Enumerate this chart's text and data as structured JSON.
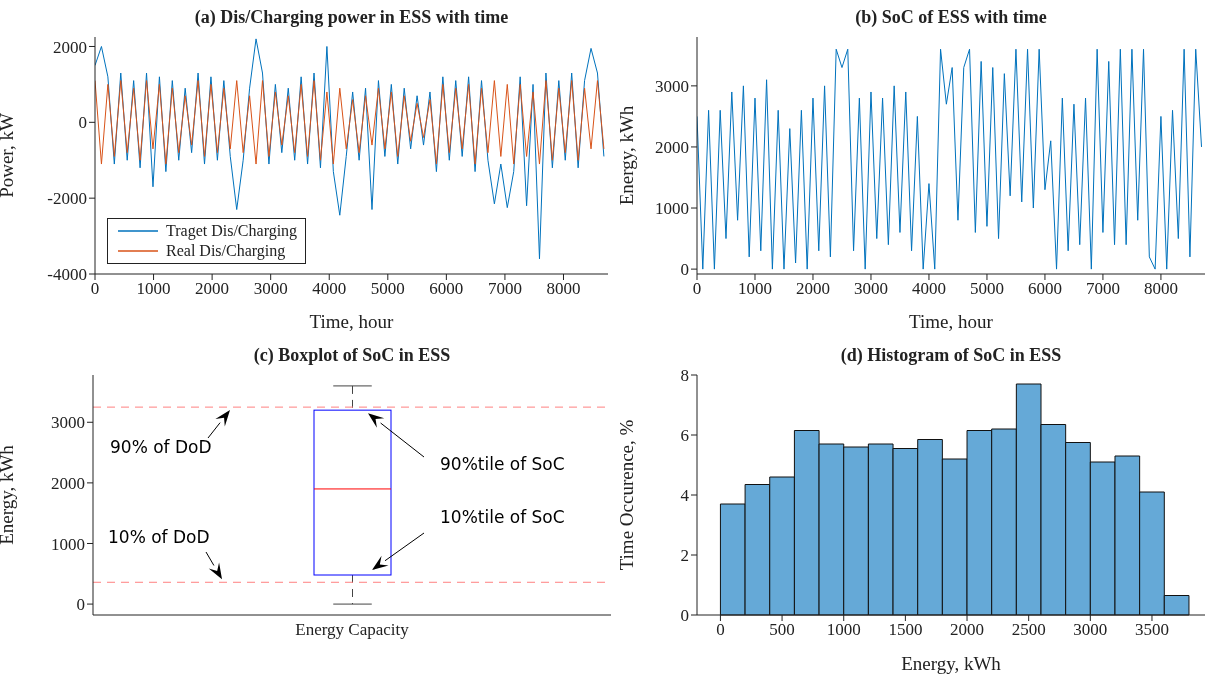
{
  "chart_data": [
    {
      "type": "line",
      "title": "(a) Dis/Charging power in ESS with time",
      "xlabel": "Time, hour",
      "ylabel": "Power, kW",
      "xlim": [
        0,
        8760
      ],
      "xticks": [
        0,
        1000,
        2000,
        3000,
        4000,
        5000,
        6000,
        7000,
        8000
      ],
      "ylim": [
        -4000,
        2250
      ],
      "yticks": [
        -4000,
        -2000,
        0,
        2000
      ],
      "legend": "bottom left",
      "marker": "none",
      "line_style": "solid",
      "x": [
        0,
        110,
        220,
        330,
        440,
        550,
        660,
        770,
        880,
        990,
        1100,
        1210,
        1320,
        1430,
        1540,
        1650,
        1760,
        1870,
        1980,
        2090,
        2200,
        2310,
        2420,
        2530,
        2640,
        2750,
        2860,
        2970,
        3080,
        3190,
        3300,
        3410,
        3520,
        3630,
        3740,
        3850,
        3960,
        4070,
        4180,
        4290,
        4400,
        4510,
        4620,
        4730,
        4840,
        4950,
        5060,
        5170,
        5280,
        5390,
        5500,
        5610,
        5720,
        5830,
        5940,
        6050,
        6160,
        6270,
        6380,
        6490,
        6600,
        6710,
        6820,
        6930,
        7040,
        7150,
        7260,
        7370,
        7480,
        7590,
        7700,
        7810,
        7920,
        8030,
        8140,
        8250,
        8360,
        8470,
        8580,
        8690
      ],
      "series": [
        {
          "name": "Traget Dis/Charging",
          "color": "#0072bd",
          "values": [
            1500,
            2000,
            1200,
            -1100,
            1300,
            -1000,
            1100,
            -1200,
            1300,
            -1700,
            1200,
            -1300,
            1100,
            -1000,
            900,
            -800,
            1300,
            -1100,
            1200,
            -1000,
            1100,
            -900,
            -2300,
            -1000,
            900,
            2200,
            1300,
            -1100,
            1000,
            -800,
            900,
            -1000,
            1200,
            -1100,
            1300,
            -1200,
            2000,
            -1300,
            -2450,
            -900,
            800,
            -1000,
            900,
            -2300,
            1100,
            -900,
            1000,
            -1100,
            900,
            -700,
            700,
            -600,
            800,
            -1300,
            1200,
            -1000,
            1100,
            -900,
            1200,
            -1300,
            1100,
            -1000,
            -2150,
            -1100,
            -2250,
            -1300,
            1200,
            -2200,
            1000,
            -3600,
            1300,
            -1200,
            1100,
            -1000,
            1300,
            -1200,
            1100,
            1950,
            1300,
            -900
          ]
        },
        {
          "name": "Real Dis/Charging",
          "color": "#d95319",
          "values": [
            1100,
            -1100,
            1000,
            -900,
            1100,
            -800,
            900,
            -1000,
            1100,
            -700,
            1000,
            -1100,
            900,
            -800,
            700,
            -600,
            1100,
            -900,
            1000,
            -800,
            900,
            -700,
            1100,
            -800,
            700,
            -1100,
            1100,
            -900,
            800,
            -600,
            700,
            -800,
            1000,
            -900,
            1100,
            -1000,
            800,
            -1100,
            900,
            -700,
            600,
            -800,
            700,
            -600,
            900,
            -700,
            800,
            -900,
            700,
            -500,
            500,
            -400,
            600,
            -1100,
            1000,
            -800,
            900,
            -700,
            1000,
            -1100,
            900,
            -800,
            1100,
            -900,
            1000,
            -1100,
            1000,
            -900,
            800,
            -1100,
            1100,
            -1000,
            900,
            -800,
            1100,
            -1000,
            900,
            -700,
            1100,
            -700
          ]
        }
      ]
    },
    {
      "type": "line",
      "title": "(b) SoC of ESS with time",
      "xlabel": "Time, hour",
      "ylabel": "Energy, kWh",
      "xlim": [
        0,
        8760
      ],
      "xticks": [
        0,
        1000,
        2000,
        3000,
        4000,
        5000,
        6000,
        7000,
        8000
      ],
      "ylim": [
        -80,
        3800
      ],
      "yticks": [
        0,
        1000,
        2000,
        3000
      ],
      "marker": "none",
      "line_style": "solid",
      "x": [
        0,
        100,
        200,
        300,
        400,
        500,
        600,
        700,
        800,
        900,
        1000,
        1100,
        1200,
        1300,
        1400,
        1500,
        1600,
        1700,
        1800,
        1900,
        2000,
        2100,
        2200,
        2300,
        2400,
        2500,
        2600,
        2700,
        2800,
        2900,
        3000,
        3100,
        3200,
        3300,
        3400,
        3500,
        3600,
        3700,
        3800,
        3900,
        4000,
        4100,
        4200,
        4300,
        4400,
        4500,
        4600,
        4700,
        4800,
        4900,
        5000,
        5100,
        5200,
        5300,
        5400,
        5500,
        5600,
        5700,
        5800,
        5900,
        6000,
        6100,
        6200,
        6300,
        6400,
        6500,
        6600,
        6700,
        6800,
        6900,
        7000,
        7100,
        7200,
        7300,
        7400,
        7500,
        7600,
        7700,
        7800,
        7900,
        8000,
        8100,
        8200,
        8300,
        8400,
        8500,
        8600,
        8700
      ],
      "series": [
        {
          "color": "#0072bd",
          "values": [
            2500,
            0,
            2600,
            0,
            2600,
            500,
            2900,
            800,
            3000,
            200,
            2800,
            300,
            3100,
            0,
            2600,
            0,
            2300,
            100,
            2600,
            0,
            2800,
            300,
            3000,
            200,
            3600,
            3300,
            3600,
            300,
            2800,
            0,
            2900,
            500,
            2800,
            400,
            3000,
            600,
            2900,
            300,
            2500,
            0,
            1400,
            0,
            3600,
            2700,
            3300,
            800,
            3300,
            3600,
            600,
            3400,
            700,
            3300,
            500,
            3200,
            1200,
            3600,
            1100,
            3600,
            1000,
            3600,
            1300,
            2100,
            0,
            2800,
            300,
            2700,
            400,
            2800,
            0,
            3600,
            600,
            3400,
            400,
            3600,
            400,
            3600,
            800,
            3600,
            200,
            0,
            2500,
            0,
            2600,
            500,
            3600,
            200,
            3600,
            2000
          ]
        }
      ]
    },
    {
      "type": "box",
      "title": "(c) Boxplot of SoC in ESS",
      "ylabel": "Energy, kWh",
      "categories": [
        "Energy Capacity"
      ],
      "ylim": [
        -180,
        3780
      ],
      "yticks": [
        0,
        1000,
        2000,
        3000
      ],
      "color": "#0000ff",
      "boxes": [
        {
          "low": 0,
          "q1": 480,
          "median": 1900,
          "q3": 3200,
          "high": 3600
        }
      ],
      "ref_lines": [
        {
          "axis": "y",
          "value": 3250,
          "color": "#ff8080",
          "line_style": "dashed"
        },
        {
          "axis": "y",
          "value": 360,
          "color": "#ff8080",
          "line_style": "dashed"
        }
      ],
      "annotations": [
        {
          "text": "90% of DoD",
          "y": 3250
        },
        {
          "text": "10% of DoD",
          "y": 360
        },
        {
          "text": "90%tile of SoC",
          "y": 3200
        },
        "10%tile of SoC"
      ]
    },
    {
      "type": "histogram",
      "title": "(d) Histogram of SoC in ESS",
      "xlabel": "Energy, kWh",
      "ylabel": "Time Occurence, %",
      "color": "#65a9d7",
      "xlim": [
        -190,
        3930
      ],
      "xticks": [
        0,
        500,
        1000,
        1500,
        2000,
        2500,
        3000,
        3500
      ],
      "ylim": [
        0,
        8
      ],
      "yticks": [
        0,
        2,
        4,
        6,
        8
      ],
      "bins": [
        0,
        200,
        400,
        600,
        800,
        1000,
        1200,
        1400,
        1600,
        1800,
        2000,
        2200,
        2400,
        2600,
        2800,
        3000,
        3200,
        3400,
        3600,
        3800
      ],
      "values": [
        3.7,
        4.35,
        4.6,
        6.15,
        5.7,
        5.6,
        5.7,
        5.55,
        5.85,
        5.2,
        6.15,
        6.2,
        7.7,
        6.35,
        5.75,
        5.1,
        5.3,
        4.1,
        0.65
      ]
    }
  ]
}
